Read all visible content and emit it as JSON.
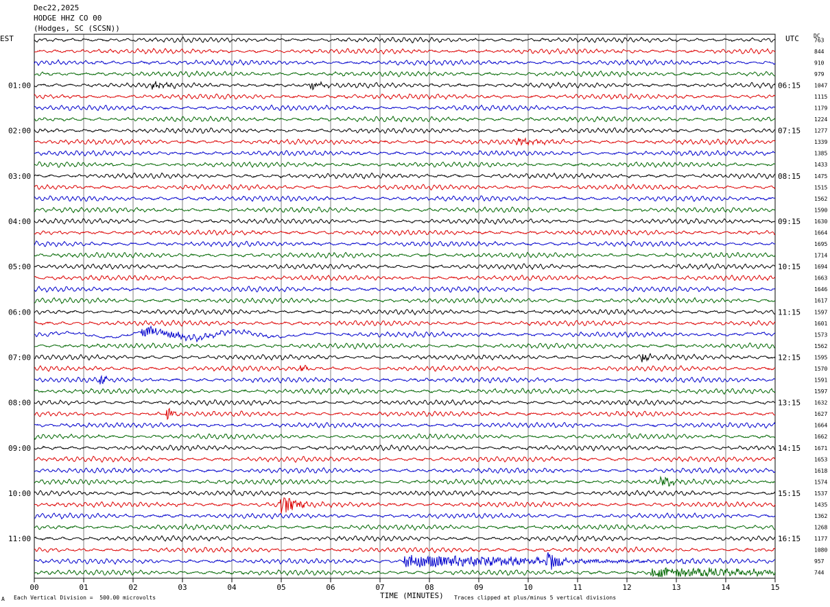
{
  "header": {
    "date": "Dec22,2025",
    "station": "HODGE HHZ CO 00",
    "location": "(Hodges, SC (SCSN))"
  },
  "axes": {
    "left_label": "EST",
    "right_label": "UTC",
    "dc_label": "DC",
    "xlabel": "TIME (MINUTES)",
    "footer_left": "Each Vertical Division =  500.00 microvolts",
    "footer_right": "Traces clipped at plus/minus 5 vertical divisions",
    "corner_mark": "A"
  },
  "colors": {
    "trace_cycle": [
      "#000000",
      "#dd0000",
      "#0000cc",
      "#006600"
    ],
    "grid": "#000000",
    "background": "#ffffff"
  },
  "chart_data": {
    "type": "line",
    "title": "HODGE HHZ CO 00",
    "xlabel": "TIME (MINUTES)",
    "xlim": [
      0,
      15
    ],
    "x_ticks": [
      "00",
      "01",
      "02",
      "03",
      "04",
      "05",
      "06",
      "07",
      "08",
      "09",
      "10",
      "11",
      "12",
      "13",
      "14",
      "15"
    ],
    "rows_per_hour": 4,
    "est_labels": [
      "01:00",
      "02:00",
      "03:00",
      "04:00",
      "05:00",
      "06:00",
      "07:00",
      "08:00",
      "09:00",
      "10:00",
      "11:00"
    ],
    "utc_labels": [
      "06:15",
      "07:15",
      "08:15",
      "09:15",
      "10:15",
      "11:15",
      "12:15",
      "13:15",
      "14:15",
      "15:15",
      "16:15"
    ],
    "hour_label_rows": [
      4,
      8,
      12,
      16,
      20,
      24,
      28,
      32,
      36,
      40,
      44
    ],
    "dc_offsets": [
      763,
      844,
      910,
      979,
      1047,
      1115,
      1179,
      1224,
      1277,
      1339,
      1385,
      1433,
      1475,
      1515,
      1562,
      1590,
      1630,
      1664,
      1695,
      1714,
      1694,
      1663,
      1646,
      1617,
      1597,
      1601,
      1573,
      1562,
      1595,
      1570,
      1591,
      1597,
      1632,
      1627,
      1664,
      1662,
      1671,
      1653,
      1618,
      1574,
      1537,
      1435,
      1362,
      1268,
      1177,
      1080,
      957,
      744
    ],
    "events": [
      {
        "row": 4,
        "minute": 2.4,
        "amp": 1.5,
        "dur": 0.7
      },
      {
        "row": 4,
        "minute": 5.6,
        "amp": 1.5,
        "dur": 0.4
      },
      {
        "row": 9,
        "minute": 9.7,
        "amp": 1.4,
        "dur": 1.1
      },
      {
        "row": 26,
        "minute": 2.2,
        "amp": 1.8,
        "dur": 2.5
      },
      {
        "row": 28,
        "minute": 12.3,
        "amp": 2.0,
        "dur": 0.3
      },
      {
        "row": 29,
        "minute": 5.4,
        "amp": 1.5,
        "dur": 0.2
      },
      {
        "row": 30,
        "minute": 1.3,
        "amp": 3.0,
        "dur": 0.2
      },
      {
        "row": 33,
        "minute": 2.7,
        "amp": 2.5,
        "dur": 0.2
      },
      {
        "row": 39,
        "minute": 12.7,
        "amp": 2.0,
        "dur": 0.5
      },
      {
        "row": 41,
        "minute": 5.0,
        "amp": 4.5,
        "dur": 0.6
      },
      {
        "row": 46,
        "minute": 7.5,
        "amp": 2.5,
        "dur": 6.0
      },
      {
        "row": 46,
        "minute": 10.4,
        "amp": 4.0,
        "dur": 0.4
      },
      {
        "row": 47,
        "minute": 12.5,
        "amp": 2.0,
        "dur": 5.0
      }
    ]
  }
}
